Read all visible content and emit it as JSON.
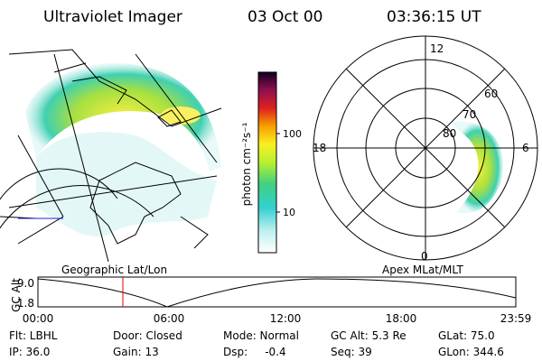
{
  "header": {
    "title": "Ultraviolet Imager",
    "date": "03 Oct 00",
    "time": "03:36:15 UT"
  },
  "colorbar": {
    "label": "photon cm⁻²s⁻¹",
    "ticks": [
      "100",
      "10"
    ]
  },
  "polar": {
    "mlt_labels": [
      "12",
      "18",
      "6",
      "0"
    ],
    "mlat_labels": [
      "60",
      "70",
      "80"
    ]
  },
  "captions": {
    "left": "Geographic Lat/Lon",
    "right": "Apex MLat/MLT"
  },
  "altitude_plot": {
    "ylabel": "GC Alt",
    "yticks": [
      "9.0",
      "1.8"
    ],
    "xticks": [
      "00:00",
      "06:00",
      "12:00",
      "18:00",
      "23:59"
    ]
  },
  "info": {
    "rows": [
      [
        "Flt: LBHL",
        "Door: Closed",
        "Mode: Normal",
        "GC Alt: 5.3 Re",
        "GLat: 75.0"
      ],
      [
        "IP: 36.0",
        "Gain: 13",
        "Dsp:     -0.4",
        "Seq: 39",
        "GLon: 344.6"
      ]
    ]
  }
}
